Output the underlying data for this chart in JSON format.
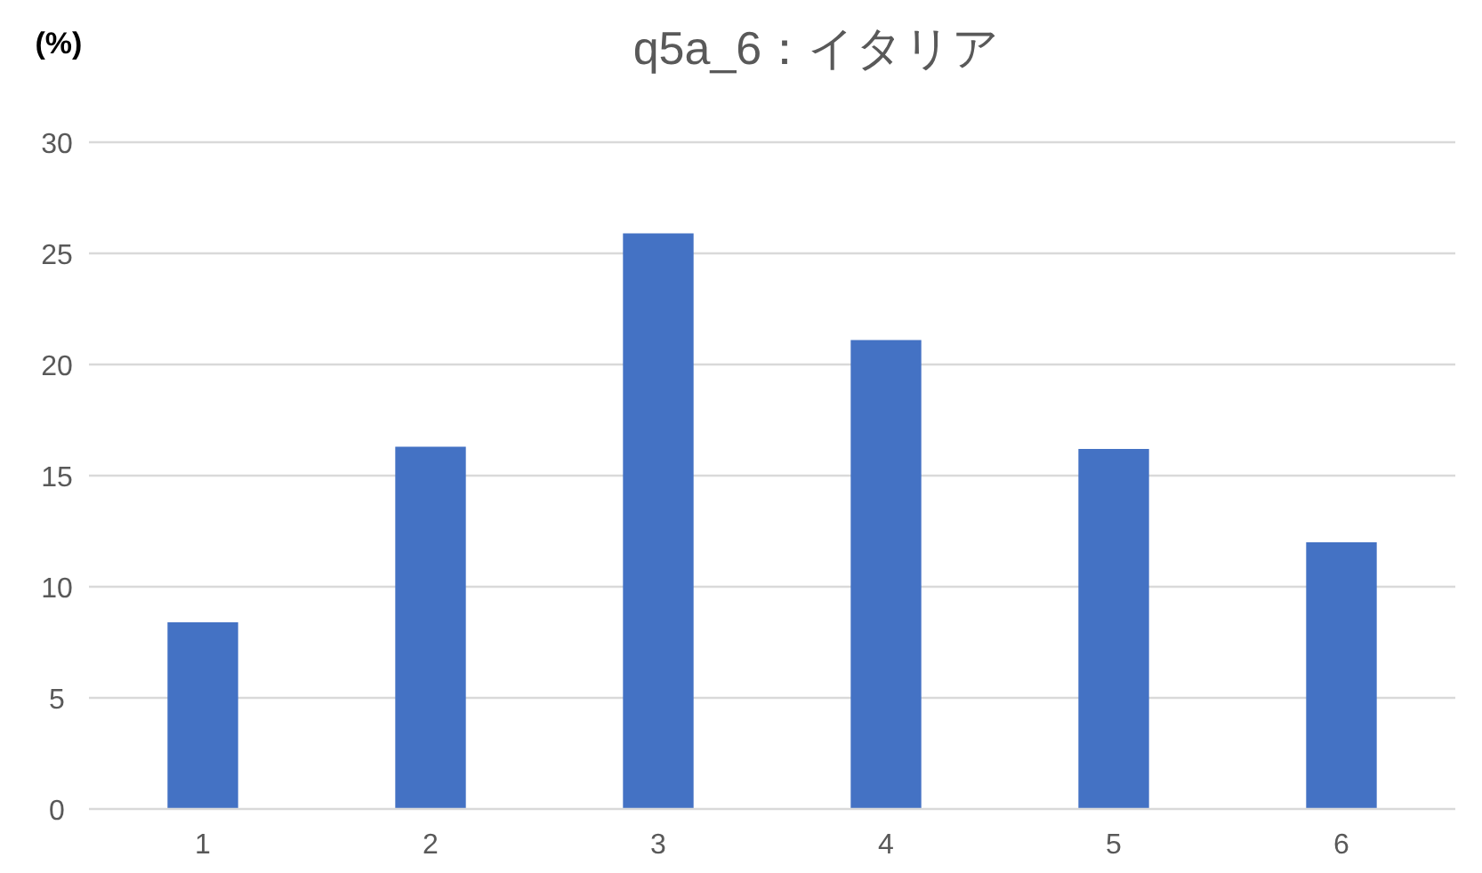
{
  "chart_data": {
    "type": "bar",
    "title": "q5a_6：イタリア",
    "ylabel": "(%)",
    "categories": [
      "1",
      "2",
      "3",
      "4",
      "5",
      "6"
    ],
    "values": [
      8.4,
      16.3,
      25.9,
      21.1,
      16.2,
      12.0
    ],
    "color": "#4472c4",
    "ylim": [
      0,
      30
    ],
    "yticks": [
      0,
      5,
      10,
      15,
      20,
      25,
      30
    ],
    "grid": "y"
  }
}
